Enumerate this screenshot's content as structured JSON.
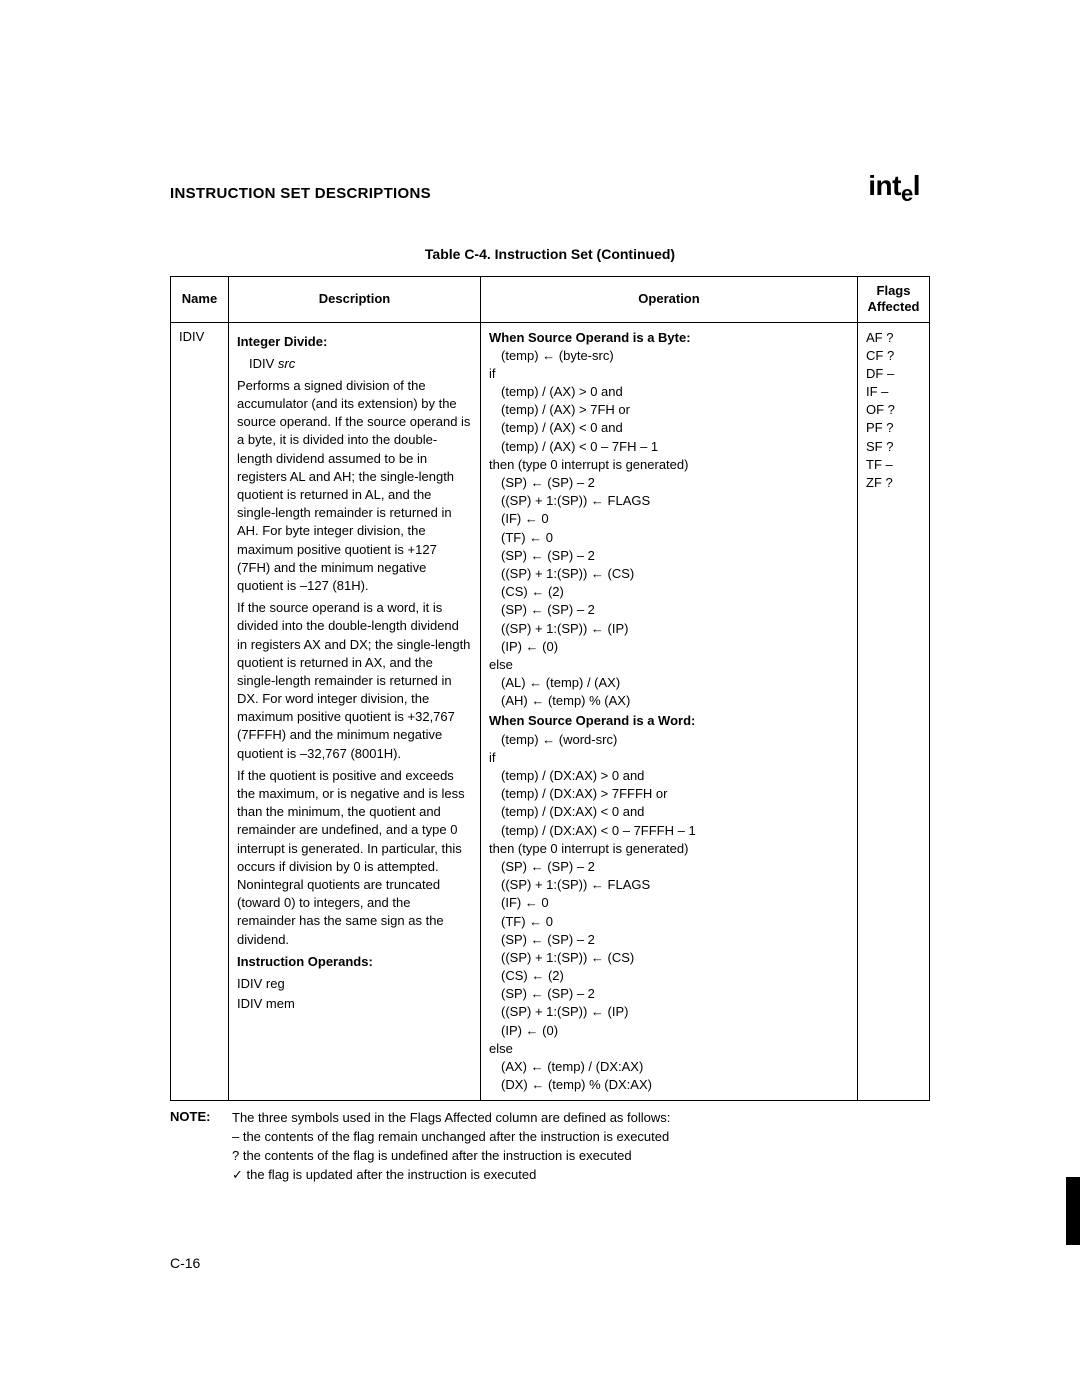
{
  "header": {
    "title": "INSTRUCTION SET DESCRIPTIONS",
    "logo_text": "int",
    "logo_e": "e",
    "logo_l": "l",
    "logo_sub": "®"
  },
  "table": {
    "caption": "Table C-4.  Instruction Set (Continued)",
    "columns": {
      "name": "Name",
      "description": "Description",
      "operation": "Operation",
      "flags": "Flags\nAffected"
    },
    "row": {
      "name": "IDIV",
      "desc": {
        "title": "Integer Divide",
        "syntax_instr": "IDIV",
        "syntax_op": "src",
        "para1": "Performs a signed division of the accumulator (and its extension) by the source operand. If the source operand is a byte, it is divided into the double-length dividend assumed to be in registers AL and AH; the single-length quotient is returned in AL, and the single-length remainder is returned in AH. For byte integer division, the maximum positive quotient is +127 (7FH) and the minimum negative quotient is –127 (81H).",
        "para2": "If the source operand is a word, it is divided into the double-length dividend in registers AX and DX; the single-length quotient is returned in AX, and the single-length remainder is returned in DX. For word integer division, the maximum positive quotient is +32,767 (7FFFH) and the minimum negative quotient is –32,767 (8001H).",
        "para3": "If the quotient is positive and exceeds the maximum, or is negative and is less than the minimum, the quotient and remainder are undefined, and a type 0 interrupt is generated. In particular, this occurs if division by 0 is attempted. Nonintegral quotients are truncated (toward 0) to integers, and the remainder has the same sign as the dividend.",
        "ops_title": "Instruction Operands:",
        "ops1": "IDIV reg",
        "ops2": "IDIV mem"
      },
      "operation": {
        "byte_title": "When Source Operand is a Byte",
        "byte_lines": [
          {
            "t": "(temp) ← (byte-src)",
            "i": 1
          },
          {
            "t": "if",
            "i": 0
          },
          {
            "t": "(temp) / (AX) > 0 and",
            "i": 1
          },
          {
            "t": "(temp) / (AX) > 7FH or",
            "i": 1
          },
          {
            "t": "(temp) / (AX) < 0 and",
            "i": 1
          },
          {
            "t": "(temp) / (AX) < 0 – 7FH – 1",
            "i": 1
          },
          {
            "t": "then (type 0 interrupt is generated)",
            "i": 0
          },
          {
            "t": "(SP) ← (SP) – 2",
            "i": 1
          },
          {
            "t": "((SP) + 1:(SP)) ← FLAGS",
            "i": 1
          },
          {
            "t": "(IF) ← 0",
            "i": 1
          },
          {
            "t": "(TF) ← 0",
            "i": 1
          },
          {
            "t": "(SP) ← (SP) – 2",
            "i": 1
          },
          {
            "t": "((SP) + 1:(SP)) ← (CS)",
            "i": 1
          },
          {
            "t": "(CS) ← (2)",
            "i": 1
          },
          {
            "t": "(SP) ← (SP) – 2",
            "i": 1
          },
          {
            "t": "((SP) + 1:(SP)) ← (IP)",
            "i": 1
          },
          {
            "t": "(IP) ← (0)",
            "i": 1
          },
          {
            "t": "else",
            "i": 0
          },
          {
            "t": "(AL) ← (temp) / (AX)",
            "i": 1
          },
          {
            "t": "(AH) ← (temp) % (AX)",
            "i": 1
          }
        ],
        "word_title": "When Source Operand is a Word",
        "word_lines": [
          {
            "t": "(temp) ← (word-src)",
            "i": 1
          },
          {
            "t": "if",
            "i": 0
          },
          {
            "t": "(temp) / (DX:AX) > 0 and",
            "i": 1
          },
          {
            "t": "(temp) / (DX:AX) > 7FFFH or",
            "i": 1
          },
          {
            "t": "(temp) / (DX:AX) < 0 and",
            "i": 1
          },
          {
            "t": "(temp) / (DX:AX) < 0 – 7FFFH – 1",
            "i": 1
          },
          {
            "t": "then (type 0 interrupt is generated)",
            "i": 0
          },
          {
            "t": "(SP) ← (SP) – 2",
            "i": 1
          },
          {
            "t": "((SP) + 1:(SP)) ← FLAGS",
            "i": 1
          },
          {
            "t": "(IF) ← 0",
            "i": 1
          },
          {
            "t": "(TF) ← 0",
            "i": 1
          },
          {
            "t": "(SP) ← (SP) – 2",
            "i": 1
          },
          {
            "t": "((SP) + 1:(SP)) ← (CS)",
            "i": 1
          },
          {
            "t": "(CS) ← (2)",
            "i": 1
          },
          {
            "t": "(SP) ← (SP) – 2",
            "i": 1
          },
          {
            "t": "((SP) + 1:(SP)) ← (IP)",
            "i": 1
          },
          {
            "t": "(IP) ← (0)",
            "i": 1
          },
          {
            "t": "else",
            "i": 0
          },
          {
            "t": "(AX) ← (temp) / (DX:AX)",
            "i": 1
          },
          {
            "t": "(DX) ← (temp) % (DX:AX)",
            "i": 1
          }
        ]
      },
      "flags": [
        {
          "f": "AF",
          "v": "?"
        },
        {
          "f": "CF",
          "v": "?"
        },
        {
          "f": "DF",
          "v": "–"
        },
        {
          "f": "IF",
          "v": "–"
        },
        {
          "f": "OF",
          "v": "?"
        },
        {
          "f": "PF",
          "v": "?"
        },
        {
          "f": "SF",
          "v": "?"
        },
        {
          "f": "TF",
          "v": "–"
        },
        {
          "f": "ZF",
          "v": "?"
        }
      ]
    }
  },
  "note": {
    "label": "NOTE:",
    "lines": [
      "The three symbols used in the Flags Affected column are defined as follows:",
      "– the contents of the flag remain unchanged after the instruction is executed",
      "? the contents of the flag is undefined after the instruction is executed",
      "✓ the flag is updated after the instruction is executed"
    ]
  },
  "page_number": "C-16"
}
